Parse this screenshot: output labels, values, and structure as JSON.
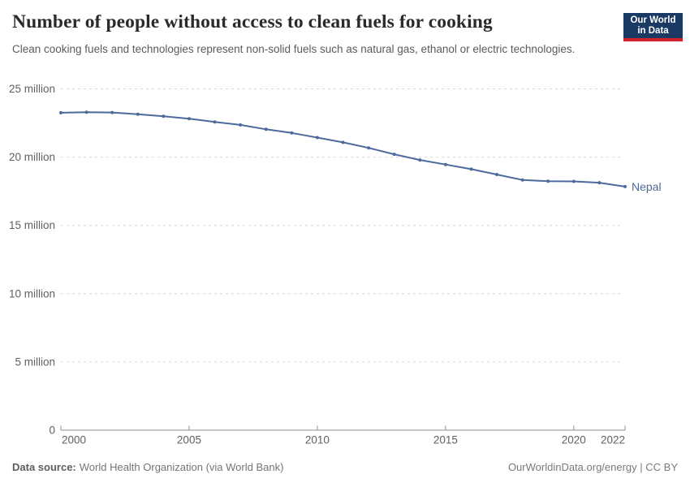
{
  "header": {
    "title": "Number of people without access to clean fuels for cooking",
    "subtitle": "Clean cooking fuels and technologies represent non-solid fuels such as natural gas, ethanol or electric technologies.",
    "logo": {
      "line1": "Our World",
      "line2": "in Data"
    }
  },
  "footer": {
    "datasource_label": "Data source:",
    "datasource_text": "World Health Organization (via World Bank)",
    "link_text": "OurWorldinData.org/energy | CC BY"
  },
  "colors": {
    "line": "#4C6A9C",
    "grid": "#d6d6d6",
    "axis": "#8f8f8f",
    "tick_label": "#606060",
    "logo_bg": "#1a3a63",
    "logo_red": "#d0232e"
  },
  "chart_data": {
    "type": "line",
    "title": "Number of people without access to clean fuels for cooking",
    "subtitle": "Clean cooking fuels and technologies represent non-solid fuels such as natural gas, ethanol or electric technologies.",
    "unit": "million people",
    "grid": true,
    "legend_position": "end-of-line",
    "xlim": [
      2000,
      2022
    ],
    "ylim": [
      0,
      25
    ],
    "x_ticks": [
      2000,
      2005,
      2010,
      2015,
      2020,
      2022
    ],
    "y_ticks": [
      {
        "value": 0,
        "label": "0"
      },
      {
        "value": 5,
        "label": "5 million"
      },
      {
        "value": 10,
        "label": "10 million"
      },
      {
        "value": 15,
        "label": "15 million"
      },
      {
        "value": 20,
        "label": "20 million"
      },
      {
        "value": 25,
        "label": "25 million"
      }
    ],
    "series": [
      {
        "name": "Nepal",
        "color": "#4C6A9C",
        "x": [
          2000,
          2001,
          2002,
          2003,
          2004,
          2005,
          2006,
          2007,
          2008,
          2009,
          2010,
          2011,
          2012,
          2013,
          2014,
          2015,
          2016,
          2017,
          2018,
          2019,
          2020,
          2021,
          2022
        ],
        "values_millions": [
          23.25,
          23.29,
          23.27,
          23.14,
          22.99,
          22.81,
          22.58,
          22.36,
          22.04,
          21.77,
          21.43,
          21.08,
          20.68,
          20.21,
          19.79,
          19.46,
          19.12,
          18.73,
          18.33,
          18.24,
          18.22,
          18.13,
          17.84
        ]
      }
    ]
  }
}
